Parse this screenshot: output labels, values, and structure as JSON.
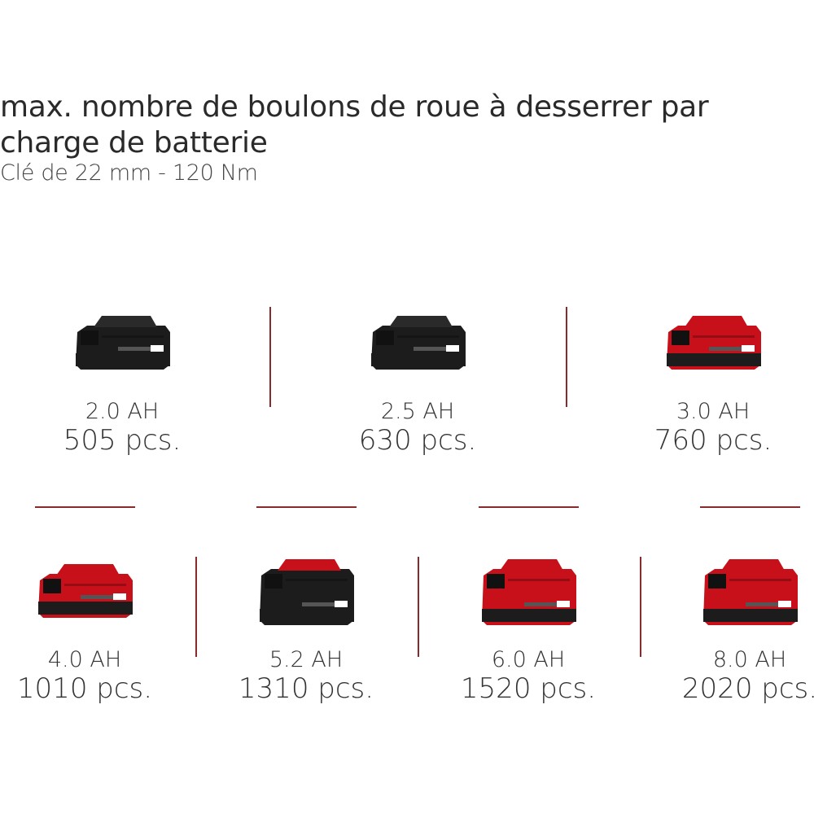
{
  "header": {
    "title_line1": "max. nombre de boulons de roue à desserrer par",
    "title_line2": "charge de batterie",
    "subtitle": "Clé de 22 mm - 120 Nm"
  },
  "colors": {
    "red": "#c8101b",
    "black": "#1c1c1c",
    "divider": "#8a2a2a"
  },
  "batteries": [
    {
      "capacity": "2.0 AH",
      "count": "505 pcs.",
      "style": "black"
    },
    {
      "capacity": "2.5 AH",
      "count": "630 pcs.",
      "style": "black"
    },
    {
      "capacity": "3.0 AH",
      "count": "760 pcs.",
      "style": "red"
    },
    {
      "capacity": "4.0 AH",
      "count": "1010 pcs.",
      "style": "red"
    },
    {
      "capacity": "5.2 AH",
      "count": "1310 pcs.",
      "style": "black-large"
    },
    {
      "capacity": "6.0 AH",
      "count": "1520 pcs.",
      "style": "red-large"
    },
    {
      "capacity": "8.0 AH",
      "count": "2020 pcs.",
      "style": "red-large"
    }
  ]
}
